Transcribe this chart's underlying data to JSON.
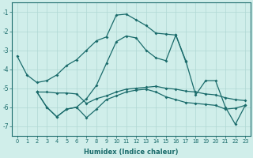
{
  "xlabel": "Humidex (Indice chaleur)",
  "xlim": [
    -0.5,
    23.5
  ],
  "ylim": [
    -7.5,
    -0.5
  ],
  "yticks": [
    -7,
    -6,
    -5,
    -4,
    -3,
    -2,
    -1
  ],
  "xticks": [
    0,
    1,
    2,
    3,
    4,
    5,
    6,
    7,
    8,
    9,
    10,
    11,
    12,
    13,
    14,
    15,
    16,
    17,
    18,
    19,
    20,
    21,
    22,
    23
  ],
  "bg_color": "#d0eeea",
  "grid_color": "#b0d8d4",
  "line_color": "#1a6b6b",
  "line_main": {
    "x": [
      0,
      1,
      2,
      3,
      4,
      5,
      6,
      7,
      8,
      9,
      10,
      11,
      12,
      13,
      14,
      15,
      16,
      17
    ],
    "y": [
      -3.3,
      -4.3,
      -4.7,
      -4.6,
      -4.3,
      -3.8,
      -3.5,
      -3.0,
      -2.5,
      -2.3,
      -1.15,
      -1.1,
      -1.4,
      -1.7,
      -2.1,
      -2.15,
      -2.2,
      -3.6
    ]
  },
  "line_big": {
    "x": [
      2,
      3,
      4,
      5,
      6,
      7,
      8,
      9,
      10,
      11,
      12,
      13,
      14,
      15,
      16,
      17,
      18,
      19,
      20,
      21,
      22,
      23
    ],
    "y": [
      -5.2,
      -6.0,
      -6.5,
      -6.1,
      -6.0,
      -5.55,
      -4.85,
      -3.7,
      -2.55,
      -2.25,
      -2.35,
      -3.0,
      -3.4,
      -3.55,
      -2.2,
      -3.55,
      -5.35,
      -4.6,
      -4.6,
      -6.0,
      -6.9,
      -5.9
    ]
  },
  "line_flat1": {
    "x": [
      2,
      3,
      4,
      5,
      6,
      7,
      8,
      9,
      10,
      11,
      12,
      13,
      14,
      15,
      16,
      17,
      18,
      19,
      20,
      21,
      22,
      23
    ],
    "y": [
      -5.2,
      -5.2,
      -5.25,
      -5.25,
      -5.3,
      -5.8,
      -5.55,
      -5.4,
      -5.2,
      -5.05,
      -5.0,
      -4.95,
      -4.9,
      -5.0,
      -5.05,
      -5.15,
      -5.2,
      -5.3,
      -5.35,
      -5.5,
      -5.6,
      -5.65
    ]
  },
  "line_flat2": {
    "x": [
      2,
      3,
      4,
      5,
      6,
      7,
      8,
      9,
      10,
      11,
      12,
      13,
      14,
      15,
      16,
      17,
      18,
      19,
      20,
      21,
      22,
      23
    ],
    "y": [
      -5.2,
      -6.0,
      -6.5,
      -6.1,
      -6.0,
      -6.55,
      -6.1,
      -5.6,
      -5.4,
      -5.2,
      -5.1,
      -5.05,
      -5.2,
      -5.45,
      -5.6,
      -5.75,
      -5.8,
      -5.85,
      -5.9,
      -6.1,
      -6.05,
      -5.9
    ]
  }
}
